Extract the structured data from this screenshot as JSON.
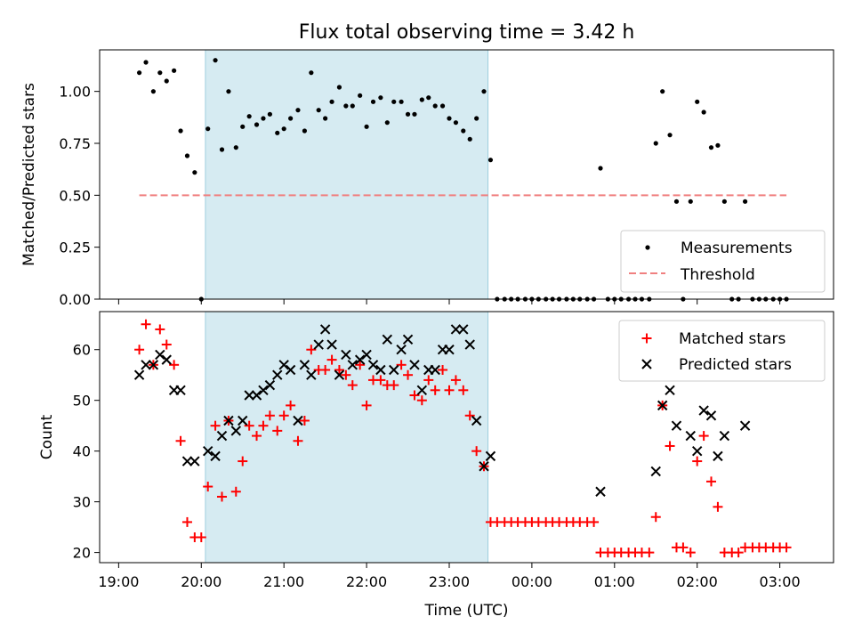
{
  "chart_data": [
    {
      "type": "scatter",
      "title": "Flux total observing time = 3.42 h",
      "ylabel": "Matched/Predicted stars",
      "xlabel": "",
      "xlim_hours": [
        18.77,
        27.65
      ],
      "ylim": [
        0,
        1.2
      ],
      "yticks": [
        0,
        0.25,
        0.5,
        0.75,
        1.0
      ],
      "ytick_labels": [
        "0.00",
        "0.25",
        "0.50",
        "0.75",
        "1.00"
      ],
      "highlight_span_hours": [
        20.05,
        23.47
      ],
      "legend": {
        "placement": "lower right",
        "entries": [
          "Measurements",
          "Threshold"
        ]
      },
      "threshold": {
        "name": "Threshold",
        "y": 0.5,
        "x_range_hours": [
          19.25,
          27.08
        ],
        "color": "#f08080"
      },
      "series": [
        {
          "name": "Measurements",
          "color": "#000000",
          "marker": "dot",
          "points": [
            [
              19.25,
              1.09
            ],
            [
              19.33,
              1.14
            ],
            [
              19.42,
              1.0
            ],
            [
              19.5,
              1.09
            ],
            [
              19.58,
              1.05
            ],
            [
              19.67,
              1.1
            ],
            [
              19.75,
              0.81
            ],
            [
              19.83,
              0.69
            ],
            [
              19.92,
              0.61
            ],
            [
              20.0,
              0.0
            ],
            [
              20.08,
              0.82
            ],
            [
              20.17,
              1.15
            ],
            [
              20.25,
              0.72
            ],
            [
              20.33,
              1.0
            ],
            [
              20.42,
              0.73
            ],
            [
              20.5,
              0.83
            ],
            [
              20.58,
              0.88
            ],
            [
              20.67,
              0.84
            ],
            [
              20.75,
              0.87
            ],
            [
              20.83,
              0.89
            ],
            [
              20.92,
              0.8
            ],
            [
              21.0,
              0.82
            ],
            [
              21.08,
              0.87
            ],
            [
              21.17,
              0.91
            ],
            [
              21.25,
              0.81
            ],
            [
              21.33,
              1.09
            ],
            [
              21.42,
              0.91
            ],
            [
              21.5,
              0.87
            ],
            [
              21.58,
              0.95
            ],
            [
              21.67,
              1.02
            ],
            [
              21.75,
              0.93
            ],
            [
              21.83,
              0.93
            ],
            [
              21.92,
              0.98
            ],
            [
              22.0,
              0.83
            ],
            [
              22.08,
              0.95
            ],
            [
              22.17,
              0.97
            ],
            [
              22.25,
              0.85
            ],
            [
              22.33,
              0.95
            ],
            [
              22.42,
              0.95
            ],
            [
              22.5,
              0.89
            ],
            [
              22.58,
              0.89
            ],
            [
              22.67,
              0.96
            ],
            [
              22.75,
              0.97
            ],
            [
              22.83,
              0.93
            ],
            [
              22.92,
              0.93
            ],
            [
              23.0,
              0.87
            ],
            [
              23.08,
              0.85
            ],
            [
              23.17,
              0.81
            ],
            [
              23.25,
              0.77
            ],
            [
              23.33,
              0.87
            ],
            [
              23.42,
              1.0
            ],
            [
              23.5,
              0.67
            ],
            [
              23.58,
              0.0
            ],
            [
              23.67,
              0.0
            ],
            [
              23.75,
              0.0
            ],
            [
              23.83,
              0.0
            ],
            [
              23.92,
              0.0
            ],
            [
              24.0,
              0.0
            ],
            [
              24.08,
              0.0
            ],
            [
              24.17,
              0.0
            ],
            [
              24.25,
              0.0
            ],
            [
              24.33,
              0.0
            ],
            [
              24.42,
              0.0
            ],
            [
              24.5,
              0.0
            ],
            [
              24.58,
              0.0
            ],
            [
              24.67,
              0.0
            ],
            [
              24.75,
              0.0
            ],
            [
              24.83,
              0.63
            ],
            [
              24.92,
              0.0
            ],
            [
              25.0,
              0.0
            ],
            [
              25.08,
              0.0
            ],
            [
              25.17,
              0.0
            ],
            [
              25.25,
              0.0
            ],
            [
              25.33,
              0.0
            ],
            [
              25.42,
              0.0
            ],
            [
              25.5,
              0.75
            ],
            [
              25.58,
              1.0
            ],
            [
              25.67,
              0.79
            ],
            [
              25.75,
              0.47
            ],
            [
              25.83,
              0.0
            ],
            [
              25.92,
              0.47
            ],
            [
              26.0,
              0.95
            ],
            [
              26.08,
              0.9
            ],
            [
              26.17,
              0.73
            ],
            [
              26.25,
              0.74
            ],
            [
              26.33,
              0.47
            ],
            [
              26.42,
              0.0
            ],
            [
              26.5,
              0.0
            ],
            [
              26.58,
              0.47
            ],
            [
              26.67,
              0.0
            ],
            [
              26.75,
              0.0
            ],
            [
              26.83,
              0.0
            ],
            [
              26.92,
              0.0
            ],
            [
              27.0,
              0.0
            ],
            [
              27.08,
              0.0
            ]
          ]
        }
      ]
    },
    {
      "type": "scatter",
      "title": "",
      "ylabel": "Count",
      "xlabel": "Time (UTC)",
      "xlim_hours": [
        18.77,
        27.65
      ],
      "ylim": [
        18,
        67.5
      ],
      "yticks": [
        20,
        30,
        40,
        50,
        60
      ],
      "xticks_hours": [
        19,
        20,
        21,
        22,
        23,
        24,
        25,
        26,
        27
      ],
      "xtick_labels": [
        "19:00",
        "20:00",
        "21:00",
        "22:00",
        "23:00",
        "00:00",
        "01:00",
        "02:00",
        "03:00"
      ],
      "highlight_span_hours": [
        20.05,
        23.47
      ],
      "legend": {
        "placement": "upper right",
        "entries": [
          "Matched stars",
          "Predicted stars"
        ]
      },
      "series": [
        {
          "name": "Matched stars",
          "color": "#ff0000",
          "marker": "plus",
          "points": [
            [
              19.25,
              60
            ],
            [
              19.33,
              65
            ],
            [
              19.42,
              57
            ],
            [
              19.5,
              64
            ],
            [
              19.58,
              61
            ],
            [
              19.67,
              57
            ],
            [
              19.75,
              42
            ],
            [
              19.83,
              26
            ],
            [
              19.92,
              23
            ],
            [
              20.0,
              23
            ],
            [
              20.08,
              33
            ],
            [
              20.17,
              45
            ],
            [
              20.25,
              31
            ],
            [
              20.33,
              46
            ],
            [
              20.42,
              32
            ],
            [
              20.5,
              38
            ],
            [
              20.58,
              45
            ],
            [
              20.67,
              43
            ],
            [
              20.75,
              45
            ],
            [
              20.83,
              47
            ],
            [
              20.92,
              44
            ],
            [
              21.0,
              47
            ],
            [
              21.08,
              49
            ],
            [
              21.17,
              42
            ],
            [
              21.25,
              46
            ],
            [
              21.33,
              60
            ],
            [
              21.42,
              56
            ],
            [
              21.5,
              56
            ],
            [
              21.58,
              58
            ],
            [
              21.67,
              56
            ],
            [
              21.75,
              55
            ],
            [
              21.83,
              53
            ],
            [
              21.92,
              57
            ],
            [
              22.0,
              49
            ],
            [
              22.08,
              54
            ],
            [
              22.17,
              54
            ],
            [
              22.25,
              53
            ],
            [
              22.33,
              53
            ],
            [
              22.42,
              57
            ],
            [
              22.5,
              55
            ],
            [
              22.58,
              51
            ],
            [
              22.67,
              50
            ],
            [
              22.75,
              54
            ],
            [
              22.83,
              52
            ],
            [
              22.92,
              56
            ],
            [
              23.0,
              52
            ],
            [
              23.08,
              54
            ],
            [
              23.17,
              52
            ],
            [
              23.25,
              47
            ],
            [
              23.33,
              40
            ],
            [
              23.42,
              37
            ],
            [
              23.5,
              26
            ],
            [
              23.58,
              26
            ],
            [
              23.67,
              26
            ],
            [
              23.75,
              26
            ],
            [
              23.83,
              26
            ],
            [
              23.92,
              26
            ],
            [
              24.0,
              26
            ],
            [
              24.08,
              26
            ],
            [
              24.17,
              26
            ],
            [
              24.25,
              26
            ],
            [
              24.33,
              26
            ],
            [
              24.42,
              26
            ],
            [
              24.5,
              26
            ],
            [
              24.58,
              26
            ],
            [
              24.67,
              26
            ],
            [
              24.75,
              26
            ],
            [
              24.83,
              20
            ],
            [
              24.92,
              20
            ],
            [
              25.0,
              20
            ],
            [
              25.08,
              20
            ],
            [
              25.17,
              20
            ],
            [
              25.25,
              20
            ],
            [
              25.33,
              20
            ],
            [
              25.42,
              20
            ],
            [
              25.5,
              27
            ],
            [
              25.58,
              49
            ],
            [
              25.67,
              41
            ],
            [
              25.75,
              21
            ],
            [
              25.83,
              21
            ],
            [
              25.92,
              20
            ],
            [
              26.0,
              38
            ],
            [
              26.08,
              43
            ],
            [
              26.17,
              34
            ],
            [
              26.25,
              29
            ],
            [
              26.33,
              20
            ],
            [
              26.42,
              20
            ],
            [
              26.5,
              20
            ],
            [
              26.58,
              21
            ],
            [
              26.67,
              21
            ],
            [
              26.75,
              21
            ],
            [
              26.83,
              21
            ],
            [
              26.92,
              21
            ],
            [
              27.0,
              21
            ],
            [
              27.08,
              21
            ]
          ]
        },
        {
          "name": "Predicted stars",
          "color": "#000000",
          "marker": "x",
          "points": [
            [
              19.25,
              55
            ],
            [
              19.33,
              57
            ],
            [
              19.42,
              57
            ],
            [
              19.5,
              59
            ],
            [
              19.58,
              58
            ],
            [
              19.67,
              52
            ],
            [
              19.75,
              52
            ],
            [
              19.83,
              38
            ],
            [
              19.92,
              38
            ],
            [
              20.08,
              40
            ],
            [
              20.17,
              39
            ],
            [
              20.25,
              43
            ],
            [
              20.33,
              46
            ],
            [
              20.42,
              44
            ],
            [
              20.5,
              46
            ],
            [
              20.58,
              51
            ],
            [
              20.67,
              51
            ],
            [
              20.75,
              52
            ],
            [
              20.83,
              53
            ],
            [
              20.92,
              55
            ],
            [
              21.0,
              57
            ],
            [
              21.08,
              56
            ],
            [
              21.17,
              46
            ],
            [
              21.25,
              57
            ],
            [
              21.33,
              55
            ],
            [
              21.42,
              61
            ],
            [
              21.5,
              64
            ],
            [
              21.58,
              61
            ],
            [
              21.67,
              55
            ],
            [
              21.75,
              59
            ],
            [
              21.83,
              57
            ],
            [
              21.92,
              58
            ],
            [
              22.0,
              59
            ],
            [
              22.08,
              57
            ],
            [
              22.17,
              56
            ],
            [
              22.25,
              62
            ],
            [
              22.33,
              56
            ],
            [
              22.42,
              60
            ],
            [
              22.5,
              62
            ],
            [
              22.58,
              57
            ],
            [
              22.67,
              52
            ],
            [
              22.75,
              56
            ],
            [
              22.83,
              56
            ],
            [
              22.92,
              60
            ],
            [
              23.0,
              60
            ],
            [
              23.08,
              64
            ],
            [
              23.17,
              64
            ],
            [
              23.25,
              61
            ],
            [
              23.33,
              46
            ],
            [
              23.42,
              37
            ],
            [
              23.5,
              39
            ],
            [
              24.83,
              32
            ],
            [
              25.5,
              36
            ],
            [
              25.58,
              49
            ],
            [
              25.67,
              52
            ],
            [
              25.75,
              45
            ],
            [
              25.92,
              43
            ],
            [
              26.0,
              40
            ],
            [
              26.08,
              48
            ],
            [
              26.17,
              47
            ],
            [
              26.25,
              39
            ],
            [
              26.33,
              43
            ],
            [
              26.58,
              45
            ]
          ]
        }
      ]
    }
  ]
}
